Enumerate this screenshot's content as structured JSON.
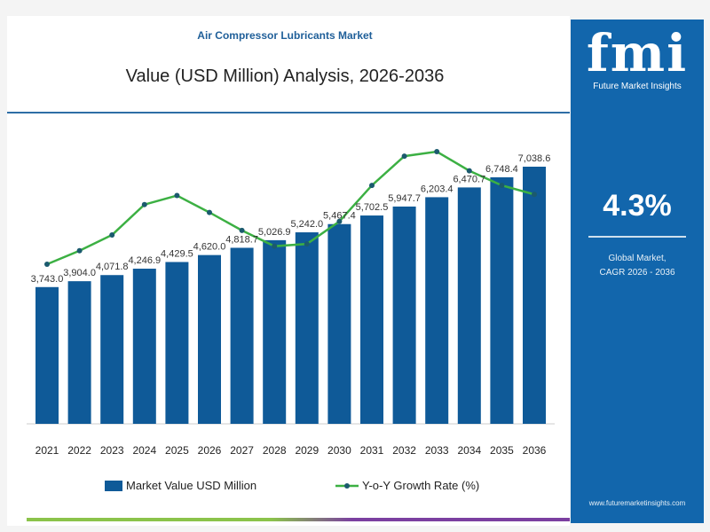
{
  "header": {
    "subtitle": "Air Compressor Lubricants Market",
    "title": "Value (USD Million) Analysis, 2026-2036"
  },
  "sidebar": {
    "logo": "fmi",
    "brand": "Future Market Insights",
    "cagr": "4.3%",
    "cagr_label_1": "Global Market,",
    "cagr_label_2": "CAGR 2026 - 2036",
    "url": "www.futuremarketinsights.com"
  },
  "colors": {
    "bar": "#0f5a98",
    "line": "#3cb043",
    "panel": "#1266ac"
  },
  "chart_data": {
    "type": "bar+line",
    "categories": [
      "2021",
      "2022",
      "2023",
      "2024",
      "2025",
      "2026",
      "2027",
      "2028",
      "2029",
      "2030",
      "2031",
      "2032",
      "2033",
      "2034",
      "2035",
      "2036"
    ],
    "series": [
      {
        "name": "Market Value USD Million",
        "type": "bar",
        "values": [
          3743.0,
          3904.0,
          4071.8,
          4246.9,
          4429.5,
          4620.0,
          4818.7,
          5026.9,
          5242.0,
          5467.4,
          5702.5,
          5947.7,
          6203.4,
          6470.7,
          6748.4,
          7038.6
        ],
        "labels": [
          "3,743.0",
          "3,904.0",
          "4,071.8",
          "4,246.9",
          "4,429.5",
          "4,620.0",
          "4,818.7",
          "5,026.9",
          "5,242.0",
          "5,467.4",
          "5,702.5",
          "5,947.7",
          "6,203.4",
          "6,470.7",
          "6,748.4",
          "7,038.6"
        ]
      },
      {
        "name": "Y-o-Y Growth Rate (%)",
        "type": "line",
        "values": [
          4.25,
          4.262,
          4.276,
          4.303,
          4.311,
          4.296,
          4.28,
          4.266,
          4.268,
          4.288,
          4.32,
          4.346,
          4.35,
          4.333,
          4.32,
          4.312
        ]
      }
    ],
    "ylim": [
      0,
      7400
    ],
    "grid": false,
    "legend": "bottom"
  }
}
